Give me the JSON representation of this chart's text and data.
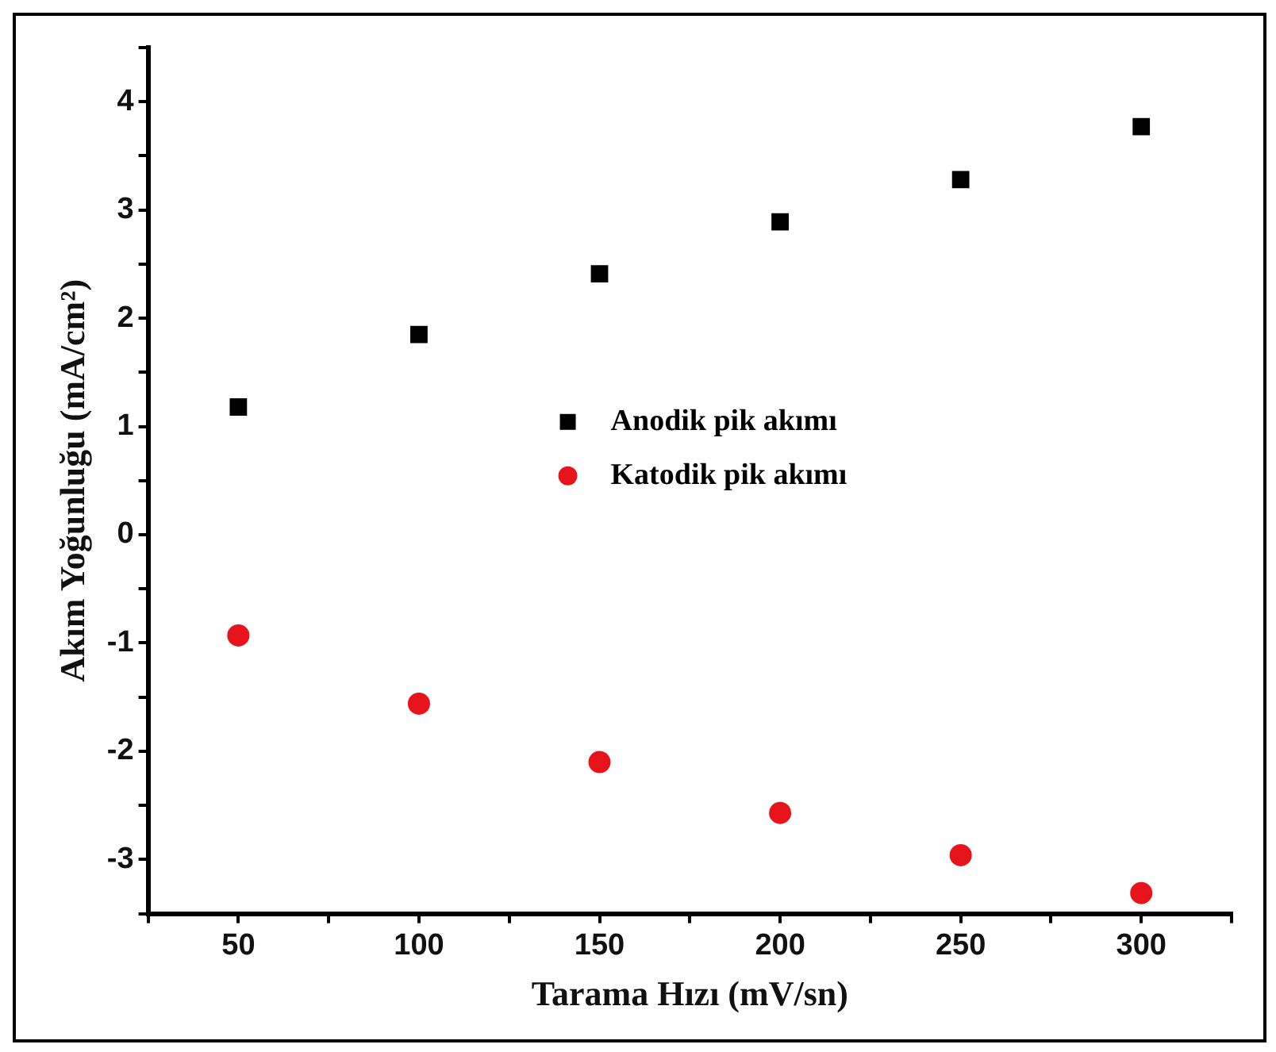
{
  "chart_data": {
    "type": "scatter",
    "xlabel": "Tarama Hızı (mV/sn)",
    "ylabel": "Akım Yoğunluğu (mA/cm²)",
    "x": [
      50,
      100,
      150,
      200,
      250,
      300
    ],
    "series": [
      {
        "name": "Anodik pik akımı",
        "color": "#000000",
        "marker": "square",
        "values": [
          1.18,
          1.85,
          2.41,
          2.89,
          3.28,
          3.77
        ]
      },
      {
        "name": "Katodik pik akımı",
        "color": "#e8141c",
        "marker": "circle",
        "values": [
          -0.93,
          -1.56,
          -2.1,
          -2.57,
          -2.96,
          -3.31
        ]
      }
    ],
    "xlim": [
      25,
      325
    ],
    "xticks": [
      {
        "value": 25,
        "label": null
      },
      50,
      {
        "value": 75,
        "label": null
      },
      100,
      {
        "value": 125,
        "label": null
      },
      150,
      {
        "value": 175,
        "label": null
      },
      200,
      {
        "value": 225,
        "label": null
      },
      250,
      {
        "value": 275,
        "label": null
      },
      300,
      {
        "value": 325,
        "label": null
      }
    ],
    "ylim": [
      -3.5,
      4.5
    ],
    "yticks": [
      {
        "value": -3.5,
        "label": null
      },
      -3,
      {
        "value": -2.5,
        "label": null
      },
      -2,
      {
        "value": -1.5,
        "label": null
      },
      -1,
      {
        "value": -0.5,
        "label": null
      },
      0,
      {
        "value": 0.5,
        "label": null
      },
      1,
      {
        "value": 1.5,
        "label": null
      },
      2,
      {
        "value": 2.5,
        "label": null
      },
      3,
      {
        "value": 3.5,
        "label": null
      },
      4,
      {
        "value": 4.5,
        "label": null
      }
    ],
    "grid": false,
    "legend": "center"
  }
}
